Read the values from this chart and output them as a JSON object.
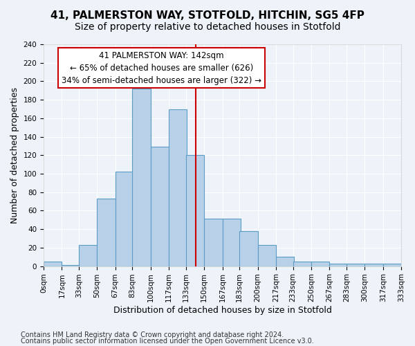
{
  "title1": "41, PALMERSTON WAY, STOTFOLD, HITCHIN, SG5 4FP",
  "title2": "Size of property relative to detached houses in Stotfold",
  "xlabel": "Distribution of detached houses by size in Stotfold",
  "ylabel": "Number of detached properties",
  "bar_color": "#b8d0e8",
  "bar_edge_color": "#5a9cc5",
  "property_size": 142,
  "annotation_line1": "41 PALMERSTON WAY: 142sqm",
  "annotation_line2": "← 65% of detached houses are smaller (626)",
  "annotation_line3": "34% of semi-detached houses are larger (322) →",
  "footer1": "Contains HM Land Registry data © Crown copyright and database right 2024.",
  "footer2": "Contains public sector information licensed under the Open Government Licence v3.0.",
  "bin_labels": [
    "0sqm",
    "17sqm",
    "33sqm",
    "50sqm",
    "67sqm",
    "83sqm",
    "100sqm",
    "117sqm",
    "133sqm",
    "150sqm",
    "167sqm",
    "183sqm",
    "200sqm",
    "217sqm",
    "233sqm",
    "250sqm",
    "267sqm",
    "283sqm",
    "300sqm",
    "317sqm",
    "333sqm"
  ],
  "bar_values": [
    5,
    1,
    23,
    73,
    102,
    192,
    129,
    170,
    120,
    51,
    51,
    38,
    23,
    10,
    5,
    5,
    3,
    3,
    3,
    3
  ],
  "bin_starts": [
    0,
    17,
    33,
    50,
    67,
    83,
    100,
    117,
    133,
    150,
    167,
    183,
    200,
    217,
    233,
    250,
    267,
    283,
    300,
    317
  ],
  "bin_width": 17,
  "ylim": [
    0,
    240
  ],
  "yticks": [
    0,
    20,
    40,
    60,
    80,
    100,
    120,
    140,
    160,
    180,
    200,
    220,
    240
  ],
  "bg_color": "#eef3f9",
  "grid_color": "#ffffff",
  "vline_color": "#cc0000",
  "box_color": "#cc0000",
  "title_fontsize": 11,
  "subtitle_fontsize": 10,
  "axis_label_fontsize": 9,
  "tick_fontsize": 7.5,
  "annotation_fontsize": 8.5,
  "footer_fontsize": 7
}
